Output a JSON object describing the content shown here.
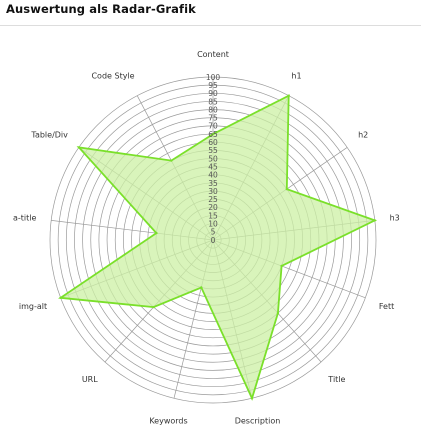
{
  "page": {
    "heading": "Auswertung als Radar-Grafik"
  },
  "chart_data": {
    "type": "radar",
    "title": "",
    "axes": [
      "Content",
      "h1",
      "h2",
      "h3",
      "Fett",
      "Title",
      "Description",
      "Keywords",
      "URL",
      "img-alt",
      "a-title",
      "Table/Div",
      "Code Style"
    ],
    "ticks": [
      0,
      5,
      10,
      15,
      20,
      25,
      30,
      35,
      40,
      45,
      50,
      55,
      60,
      65,
      70,
      75,
      80,
      85,
      90,
      95,
      100
    ],
    "range": [
      0,
      100
    ],
    "series": [
      {
        "values": [
          65,
          100,
          55,
          100,
          45,
          60,
          100,
          30,
          55,
          100,
          35,
          100,
          55
        ],
        "fill_color": "#ccf0a4",
        "line_color": "#7ae02a"
      }
    ],
    "grid": "circular",
    "legend": "none"
  }
}
